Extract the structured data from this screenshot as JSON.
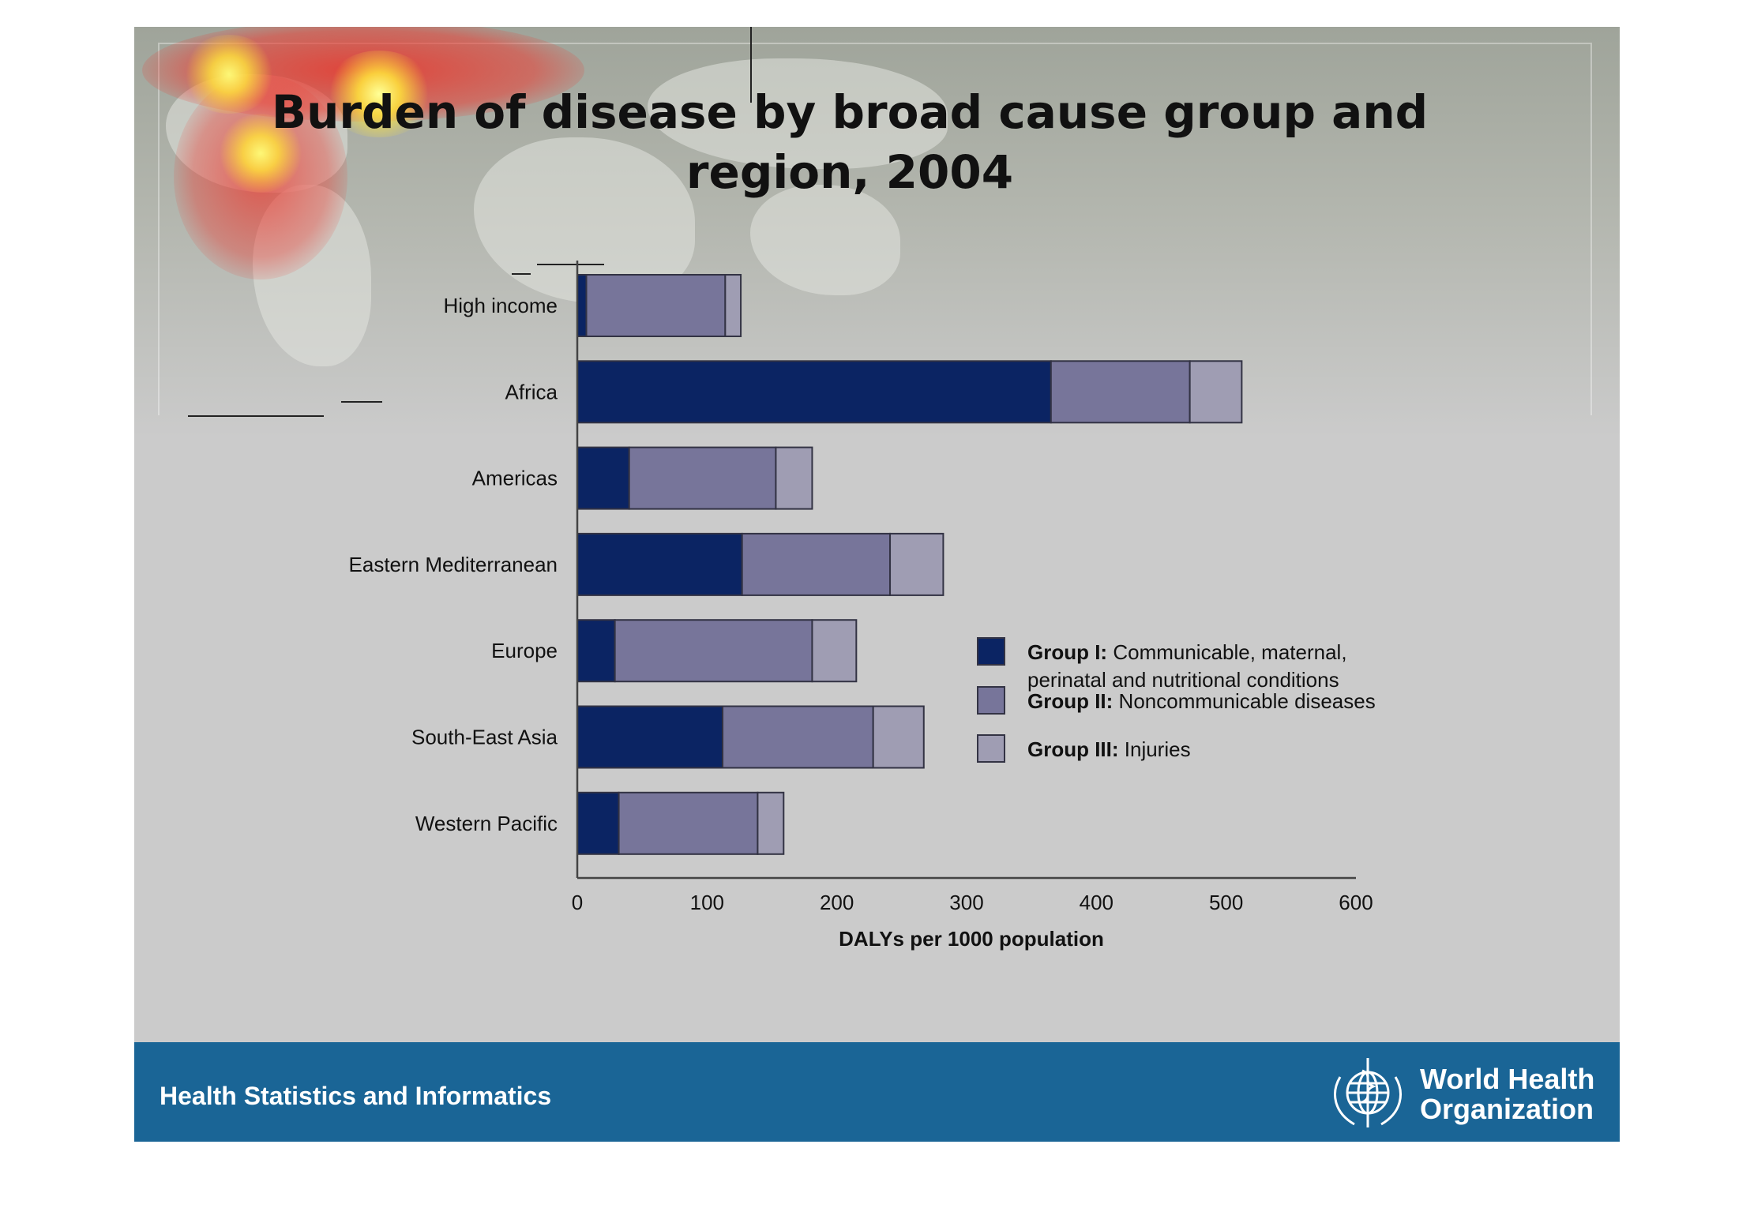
{
  "slide": {
    "title_line1": "Burden of disease by broad cause group and",
    "title_line2": "region, 2004"
  },
  "footer": {
    "label": "Health Statistics and Informatics",
    "org_line1": "World Health",
    "org_line2": "Organization",
    "emblem_icon": "who-emblem-icon"
  },
  "colors": {
    "group1": "#0b2463",
    "group2": "#77759a",
    "group3": "#9f9db3",
    "footer_bg": "#1a6596"
  },
  "chart_data": {
    "type": "bar",
    "orientation": "horizontal",
    "stacked": true,
    "categories": [
      "High income",
      "Africa",
      "Americas",
      "Eastern Mediterranean",
      "Europe",
      "South-East Asia",
      "Western Pacific"
    ],
    "series": [
      {
        "name": "Group I: Communicable, maternal, perinatal and nutritional conditions",
        "legend_bold": "Group I:",
        "legend_rest": "Communicable, maternal,",
        "legend_rest2": "perinatal and nutritional conditions",
        "values": [
          7,
          365,
          40,
          127,
          29,
          112,
          32
        ]
      },
      {
        "name": "Group II: Noncommunicable diseases",
        "legend_bold": "Group II:",
        "legend_rest": "Noncommunicable diseases",
        "values": [
          107,
          107,
          113,
          114,
          152,
          116,
          107
        ]
      },
      {
        "name": "Group III: Injuries",
        "legend_bold": "Group III:",
        "legend_rest": "Injuries",
        "values": [
          12,
          40,
          28,
          41,
          34,
          39,
          20
        ]
      }
    ],
    "xlabel": "DALYs per 1000 population",
    "xlim": [
      0,
      600
    ],
    "xticks": [
      0,
      100,
      200,
      300,
      400,
      500,
      600
    ],
    "grid": false,
    "legend_position": "right"
  }
}
